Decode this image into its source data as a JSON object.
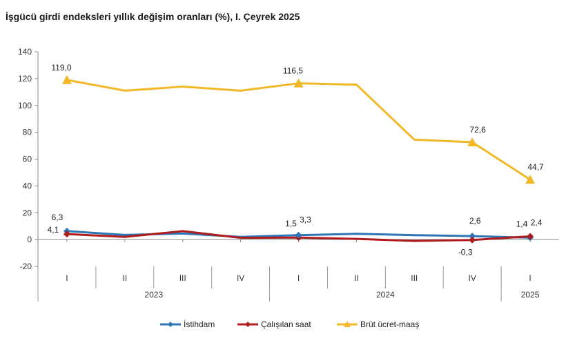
{
  "title": "İşgücü girdi endeksleri yıllık değişim oranları (%), I. Çeyrek 2025",
  "chart_data": {
    "type": "line",
    "title": "İşgücü girdi endeksleri yıllık değişim oranları (%), I. Çeyrek 2025",
    "categories": [
      "I",
      "II",
      "III",
      "IV",
      "I",
      "II",
      "III",
      "IV",
      "I"
    ],
    "years": [
      {
        "label": "2023",
        "start": 0,
        "end": 3
      },
      {
        "label": "2024",
        "start": 4,
        "end": 7
      },
      {
        "label": "2025",
        "start": 8,
        "end": 8
      }
    ],
    "ylim": [
      -20,
      140
    ],
    "yticks": [
      -20,
      0,
      20,
      40,
      60,
      80,
      100,
      120,
      140
    ],
    "legend_position": "bottom",
    "series": [
      {
        "name": "İstihdam",
        "color": "#2e75b6",
        "marker": "diamond",
        "values": [
          6.3,
          3.5,
          4.5,
          2.0,
          3.3,
          4.3,
          3.3,
          2.6,
          1.4
        ]
      },
      {
        "name": "Çalışılan saat",
        "color": "#b01c1c",
        "marker": "diamond",
        "values": [
          4.1,
          2.0,
          6.3,
          1.3,
          1.5,
          0.5,
          -1.0,
          -0.3,
          2.4
        ]
      },
      {
        "name": "Brüt ücret-maaş",
        "color": "#f2b827",
        "marker": "triangle",
        "values": [
          119.0,
          111.0,
          114.0,
          111.0,
          116.5,
          115.5,
          74.5,
          72.6,
          44.7
        ]
      }
    ],
    "data_labels": [
      {
        "series": 0,
        "index": 0,
        "text": "6,3"
      },
      {
        "series": 1,
        "index": 0,
        "text": "4,1"
      },
      {
        "series": 2,
        "index": 0,
        "text": "119,0"
      },
      {
        "series": 1,
        "index": 4,
        "text": "1,5"
      },
      {
        "series": 0,
        "index": 4,
        "text": "3,3"
      },
      {
        "series": 2,
        "index": 4,
        "text": "116,5"
      },
      {
        "series": 0,
        "index": 7,
        "text": "2,6"
      },
      {
        "series": 1,
        "index": 7,
        "text": "-0,3"
      },
      {
        "series": 2,
        "index": 7,
        "text": "72,6"
      },
      {
        "series": 0,
        "index": 8,
        "text": "1,4"
      },
      {
        "series": 1,
        "index": 8,
        "text": "2,4"
      },
      {
        "series": 2,
        "index": 8,
        "text": "44,7"
      }
    ]
  }
}
